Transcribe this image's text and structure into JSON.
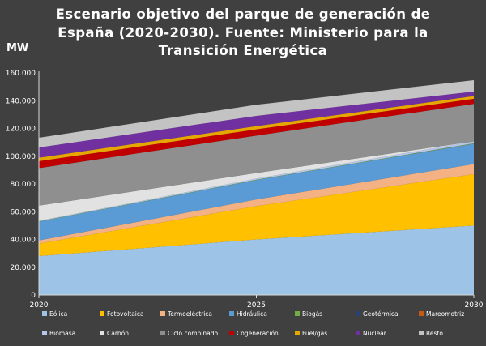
{
  "chart_data": {
    "type": "area",
    "stacked": true,
    "title_lines": [
      "Escenario objetivo del parque de generación de",
      "España (2020-2030). Fuente: Ministerio para la",
      "Transición Energética"
    ],
    "ylabel": "MW",
    "xlabel": "",
    "x": [
      "2020",
      "2025",
      "2030"
    ],
    "ylim": [
      0,
      160000
    ],
    "yticks": [
      "0",
      "20.000",
      "40.000",
      "60.000",
      "80.000",
      "100.000",
      "120.000",
      "140.000",
      "160.000"
    ],
    "grid": false,
    "legend_position": "bottom",
    "series": [
      {
        "name": "Eólica",
        "color": "#9DC3E6",
        "values": [
          28000,
          40000,
          50000
        ]
      },
      {
        "name": "Fotovoltaica",
        "color": "#FFC000",
        "values": [
          9000,
          24000,
          37000
        ]
      },
      {
        "name": "Termoeléctrica",
        "color": "#F4B183",
        "values": [
          2300,
          4800,
          7300
        ]
      },
      {
        "name": "Hidráulica",
        "color": "#5B9BD5",
        "values": [
          13500,
          14000,
          14600
        ]
      },
      {
        "name": "Biogás",
        "color": "#70AD47",
        "values": [
          200,
          250,
          300
        ]
      },
      {
        "name": "Geotérmica",
        "color": "#264478",
        "values": [
          0,
          0,
          30
        ]
      },
      {
        "name": "Mareomotriz",
        "color": "#C55A11",
        "values": [
          0,
          0,
          40
        ]
      },
      {
        "name": "Biomasa",
        "color": "#B4C7E7",
        "values": [
          400,
          800,
          1400
        ]
      },
      {
        "name": "Carbón",
        "color": "#E2E2E2",
        "values": [
          11000,
          4000,
          0
        ]
      },
      {
        "name": "Ciclo combinado",
        "color": "#8F8F8F",
        "values": [
          27000,
          27000,
          27000
        ]
      },
      {
        "name": "Cogeneración",
        "color": "#C00000",
        "values": [
          5000,
          4500,
          3700
        ]
      },
      {
        "name": "Fuel/gas",
        "color": "#E6A800",
        "values": [
          2500,
          2300,
          2000
        ]
      },
      {
        "name": "Nuclear",
        "color": "#7030A0",
        "values": [
          7400,
          7400,
          3200
        ]
      },
      {
        "name": "Resto",
        "color": "#C3C3C3",
        "values": [
          7000,
          8000,
          8200
        ]
      }
    ]
  }
}
